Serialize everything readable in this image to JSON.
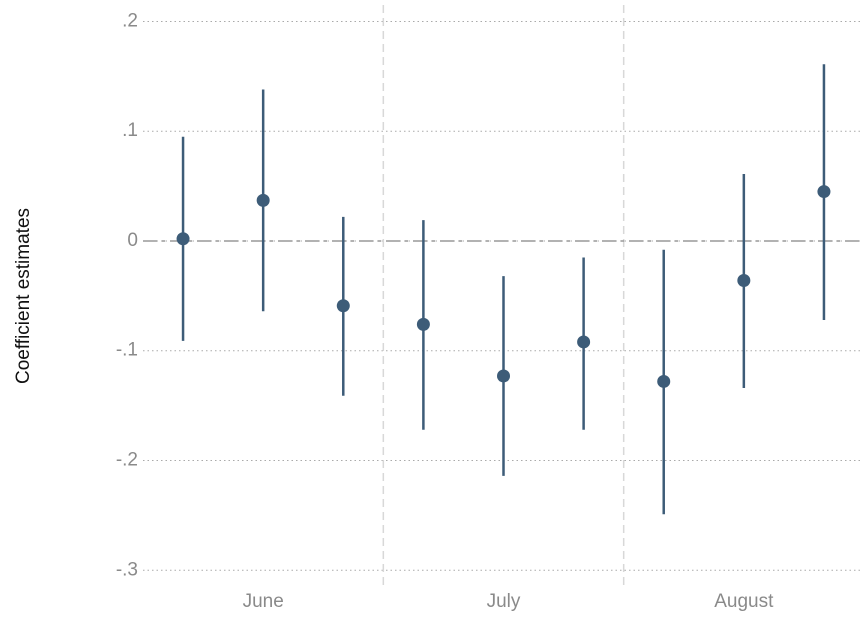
{
  "chart_data": {
    "type": "coefplot",
    "ylabel": "Coefficient estimates",
    "x": [
      1,
      2,
      3,
      4,
      5,
      6,
      7,
      8,
      9
    ],
    "values": [
      0.002,
      0.037,
      -0.059,
      -0.076,
      -0.123,
      -0.092,
      -0.128,
      -0.036,
      0.045
    ],
    "lower": [
      -0.091,
      -0.064,
      -0.141,
      -0.172,
      -0.214,
      -0.172,
      -0.249,
      -0.134,
      -0.072
    ],
    "upper": [
      0.095,
      0.138,
      0.022,
      0.019,
      -0.032,
      -0.015,
      -0.008,
      0.061,
      0.161
    ],
    "color": "#3d5c78",
    "xlim": [
      0.5,
      9.45
    ],
    "xticks": [
      {
        "value": 2,
        "label": "June"
      },
      {
        "value": 5,
        "label": "July"
      },
      {
        "value": 8,
        "label": "August"
      }
    ],
    "separators": [
      3.5,
      6.5
    ],
    "ylim": [
      -0.318,
      0.215
    ],
    "yticks": [
      {
        "value": 0.2,
        "label": ".2"
      },
      {
        "value": 0.1,
        "label": ".1"
      },
      0,
      {
        "value": -0.1,
        "label": "-.1"
      },
      {
        "value": -0.2,
        "label": "-.2"
      },
      {
        "value": -0.3,
        "label": "-.3"
      }
    ],
    "reference_line": 0,
    "grid": true
  }
}
